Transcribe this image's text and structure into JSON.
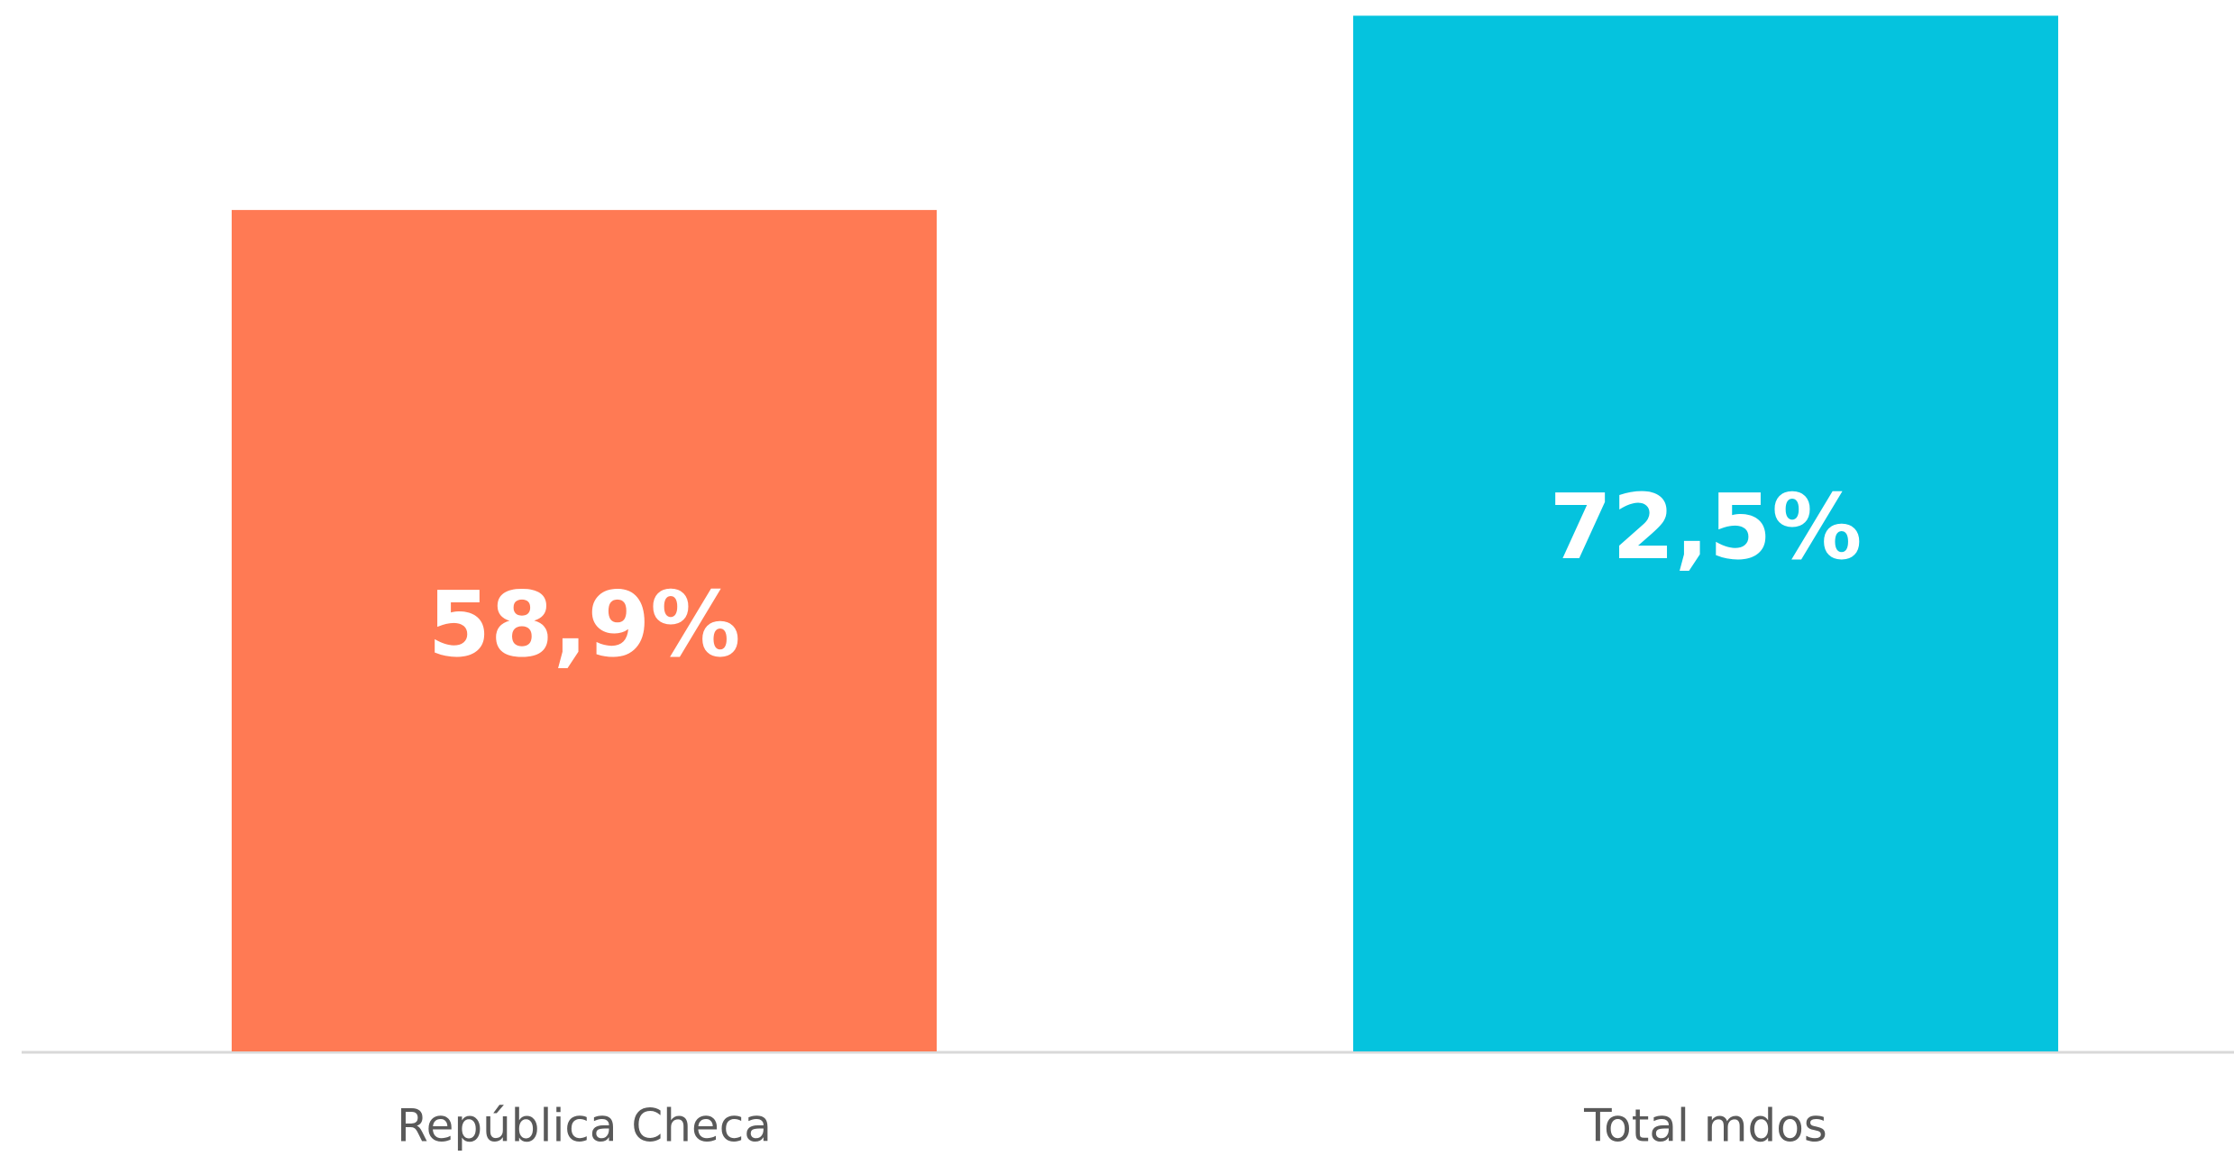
{
  "chart_data": {
    "type": "bar",
    "categories": [
      "República Checa",
      "Total mdos"
    ],
    "values": [
      58.9,
      72.5
    ],
    "value_labels": [
      "58,9%",
      "72,5%"
    ],
    "colors": [
      "#ff7a54",
      "#05c3de"
    ],
    "ylim": [
      0,
      73.6
    ]
  }
}
